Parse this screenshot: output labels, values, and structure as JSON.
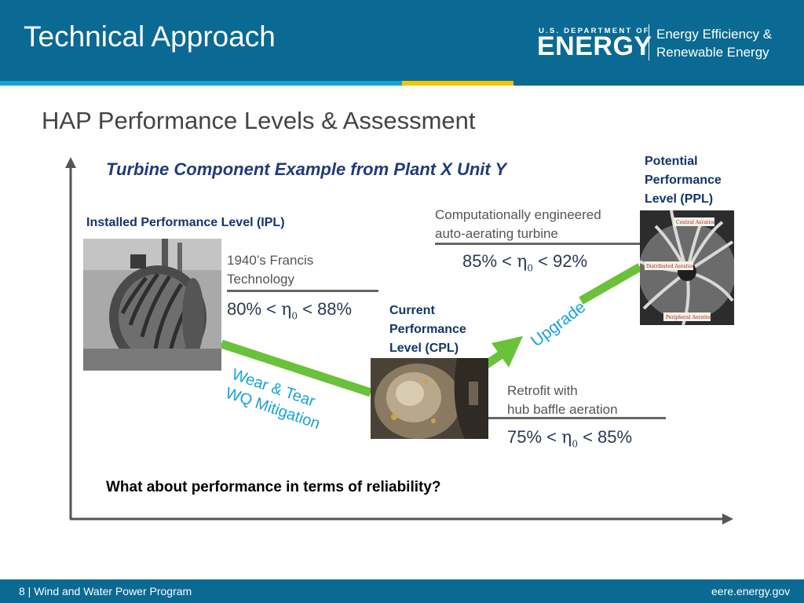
{
  "header": {
    "title": "Technical Approach",
    "doe_small": "U.S. DEPARTMENT OF",
    "doe_big": "ENERGY",
    "eere_line1": "Energy Efficiency &",
    "eere_line2": "Renewable Energy"
  },
  "subtitle": "HAP Performance Levels & Assessment",
  "example_title": "Turbine Component Example from Plant X Unit Y",
  "ipl": {
    "label": "Installed Performance Level (IPL)",
    "desc_line1": "1940’s Francis",
    "desc_line2": "Technology",
    "eff_low": "80% <",
    "eff_high": "< 88%"
  },
  "cpl": {
    "label_line1": "Current",
    "label_line2": "Performance",
    "label_line3": "Level (CPL)",
    "desc_line1": "Retrofit with",
    "desc_line2": "hub baffle aeration",
    "eff_low": "75% <",
    "eff_high": "< 85%"
  },
  "ppl": {
    "label_line1": "Potential",
    "label_line2": "Performance",
    "label_line3": "Level (PPL)",
    "desc_line1": "Computationally engineered",
    "desc_line2": "auto-aerating turbine",
    "eff_low": "85% <",
    "eff_high": "< 92%",
    "photo_caption_1": "Central Aeration",
    "photo_caption_2": "Distributed Aeration",
    "photo_caption_3": "Peripheral Aeration"
  },
  "eta_symbol": "η",
  "eta_subscript": "0",
  "arrow_labels": {
    "wear_line1": "Wear & Tear",
    "wear_line2": "WQ Mitigation",
    "upgrade": "Upgrade"
  },
  "question": "What about performance in terms of reliability?",
  "footer": {
    "left": "8 | Wind and Water Power Program",
    "right": "eere.energy.gov"
  },
  "colors": {
    "header_blue": "#0a6a93",
    "accent_cyan": "#16a3d8",
    "accent_yellow": "#f7c600",
    "arrow_green": "#6ac13a",
    "label_navy": "#14346b"
  }
}
